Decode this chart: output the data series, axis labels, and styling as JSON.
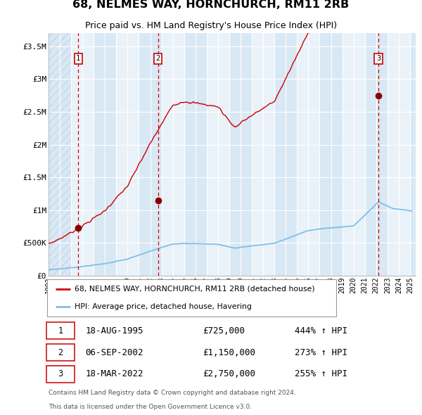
{
  "title": "68, NELMES WAY, HORNCHURCH, RM11 2RB",
  "subtitle": "Price paid vs. HM Land Registry's House Price Index (HPI)",
  "sale_prices": [
    725000,
    1150000,
    2750000
  ],
  "sale_labels": [
    "1",
    "2",
    "3"
  ],
  "sale_pct": [
    "444% ↑ HPI",
    "273% ↑ HPI",
    "255% ↑ HPI"
  ],
  "sale_date_strs": [
    "18-AUG-1995",
    "06-SEP-2002",
    "18-MAR-2022"
  ],
  "sale_price_strs": [
    "£725,000",
    "£1,150,000",
    "£2,750,000"
  ],
  "hpi_color": "#7fbfea",
  "price_color": "#cc0000",
  "marker_color": "#880000",
  "dashed_line_color": "#cc0000",
  "bg_stripe_color": "#d8e8f4",
  "bg_white_color": "#eaf2f9",
  "hatch_color": "#c8d8e8",
  "legend_line1": "68, NELMES WAY, HORNCHURCH, RM11 2RB (detached house)",
  "legend_line2": "HPI: Average price, detached house, Havering",
  "footnote1": "Contains HM Land Registry data © Crown copyright and database right 2024.",
  "footnote2": "This data is licensed under the Open Government Licence v3.0.",
  "ylim": [
    0,
    3700000
  ],
  "yticks": [
    0,
    500000,
    1000000,
    1500000,
    2000000,
    2500000,
    3000000,
    3500000
  ],
  "ytick_labels": [
    "£0",
    "£500K",
    "£1M",
    "£1.5M",
    "£2M",
    "£2.5M",
    "£3M",
    "£3.5M"
  ],
  "t1_year": 1995.635,
  "t2_year": 2002.685,
  "t3_year": 2022.207,
  "xmin": 1993.0,
  "xmax": 2025.5
}
